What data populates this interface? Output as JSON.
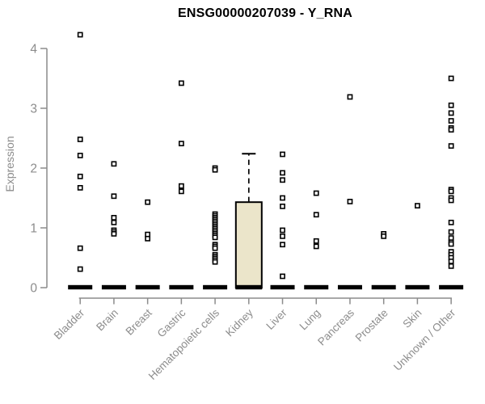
{
  "title": "ENSG00000207039 - Y_RNA",
  "colors": {
    "axis": "#8c8c8c",
    "tick_label": "#8c8c8c",
    "title": "#000000",
    "point": "#000000",
    "box_fill": "#ebe5ca",
    "box_border": "#000000",
    "median": "#000000"
  },
  "chart_data": {
    "type": "boxplot",
    "title": "ENSG00000207039 - Y_RNA",
    "xlabel": "",
    "ylabel": "Expression",
    "ylim": [
      0,
      4.4
    ],
    "yticks": [
      0,
      1,
      2,
      3,
      4
    ],
    "grid": "off",
    "legend": "none",
    "categories": [
      "Bladder",
      "Brain",
      "Breast",
      "Gastric",
      "Hematopoietic cells",
      "Kidney",
      "Liver",
      "Lung",
      "Pancreas",
      "Prostate",
      "Skin",
      "Unknown / Other"
    ],
    "boxes": [
      {
        "category": "Bladder",
        "median": 0,
        "q1": 0,
        "q3": 0,
        "whisker_high": 0,
        "points": [
          4.23,
          2.48,
          2.21,
          1.86,
          1.67,
          0.66,
          0.31
        ]
      },
      {
        "category": "Brain",
        "median": 0,
        "q1": 0,
        "q3": 0,
        "whisker_high": 0,
        "points": [
          2.07,
          1.53,
          1.17,
          1.09,
          0.96,
          0.93,
          0.9
        ]
      },
      {
        "category": "Breast",
        "median": 0,
        "q1": 0,
        "q3": 0,
        "whisker_high": 0,
        "points": [
          1.43,
          0.89,
          0.82
        ]
      },
      {
        "category": "Gastric",
        "median": 0,
        "q1": 0,
        "q3": 0,
        "whisker_high": 0,
        "points": [
          3.42,
          2.41,
          1.7,
          1.61
        ]
      },
      {
        "category": "Hematopoietic cells",
        "median": 0,
        "q1": 0,
        "q3": 0,
        "whisker_high": 0,
        "points": [
          2.0,
          1.97,
          1.23,
          1.2,
          1.17,
          1.14,
          1.11,
          1.08,
          1.05,
          1.02,
          0.99,
          0.96,
          0.93,
          0.9,
          0.87,
          0.84,
          0.72,
          0.69,
          0.66,
          0.55,
          0.52,
          0.49,
          0.46,
          0.43
        ]
      },
      {
        "category": "Kidney",
        "median": 0,
        "q1": 0,
        "q3": 1.43,
        "whisker_high": 2.24,
        "points": []
      },
      {
        "category": "Liver",
        "median": 0,
        "q1": 0,
        "q3": 0,
        "whisker_high": 0,
        "points": [
          2.23,
          1.92,
          1.8,
          1.5,
          1.36,
          0.96,
          0.86,
          0.72,
          0.19
        ]
      },
      {
        "category": "Lung",
        "median": 0,
        "q1": 0,
        "q3": 0,
        "whisker_high": 0,
        "points": [
          1.58,
          1.22,
          0.78,
          0.69
        ]
      },
      {
        "category": "Pancreas",
        "median": 0,
        "q1": 0,
        "q3": 0,
        "whisker_high": 0,
        "points": [
          3.19,
          1.44
        ]
      },
      {
        "category": "Prostate",
        "median": 0,
        "q1": 0,
        "q3": 0,
        "whisker_high": 0,
        "points": [
          0.9,
          0.86
        ]
      },
      {
        "category": "Skin",
        "median": 0,
        "q1": 0,
        "q3": 0,
        "whisker_high": 0,
        "points": [
          1.37
        ]
      },
      {
        "category": "Unknown / Other",
        "median": 0,
        "q1": 0,
        "q3": 0,
        "whisker_high": 0,
        "points": [
          3.5,
          3.05,
          2.92,
          2.79,
          2.67,
          2.64,
          2.37,
          1.64,
          1.61,
          1.5,
          1.46,
          1.09,
          0.93,
          0.83,
          0.76,
          0.73,
          0.6,
          0.55,
          0.5,
          0.44,
          0.36
        ]
      }
    ]
  }
}
